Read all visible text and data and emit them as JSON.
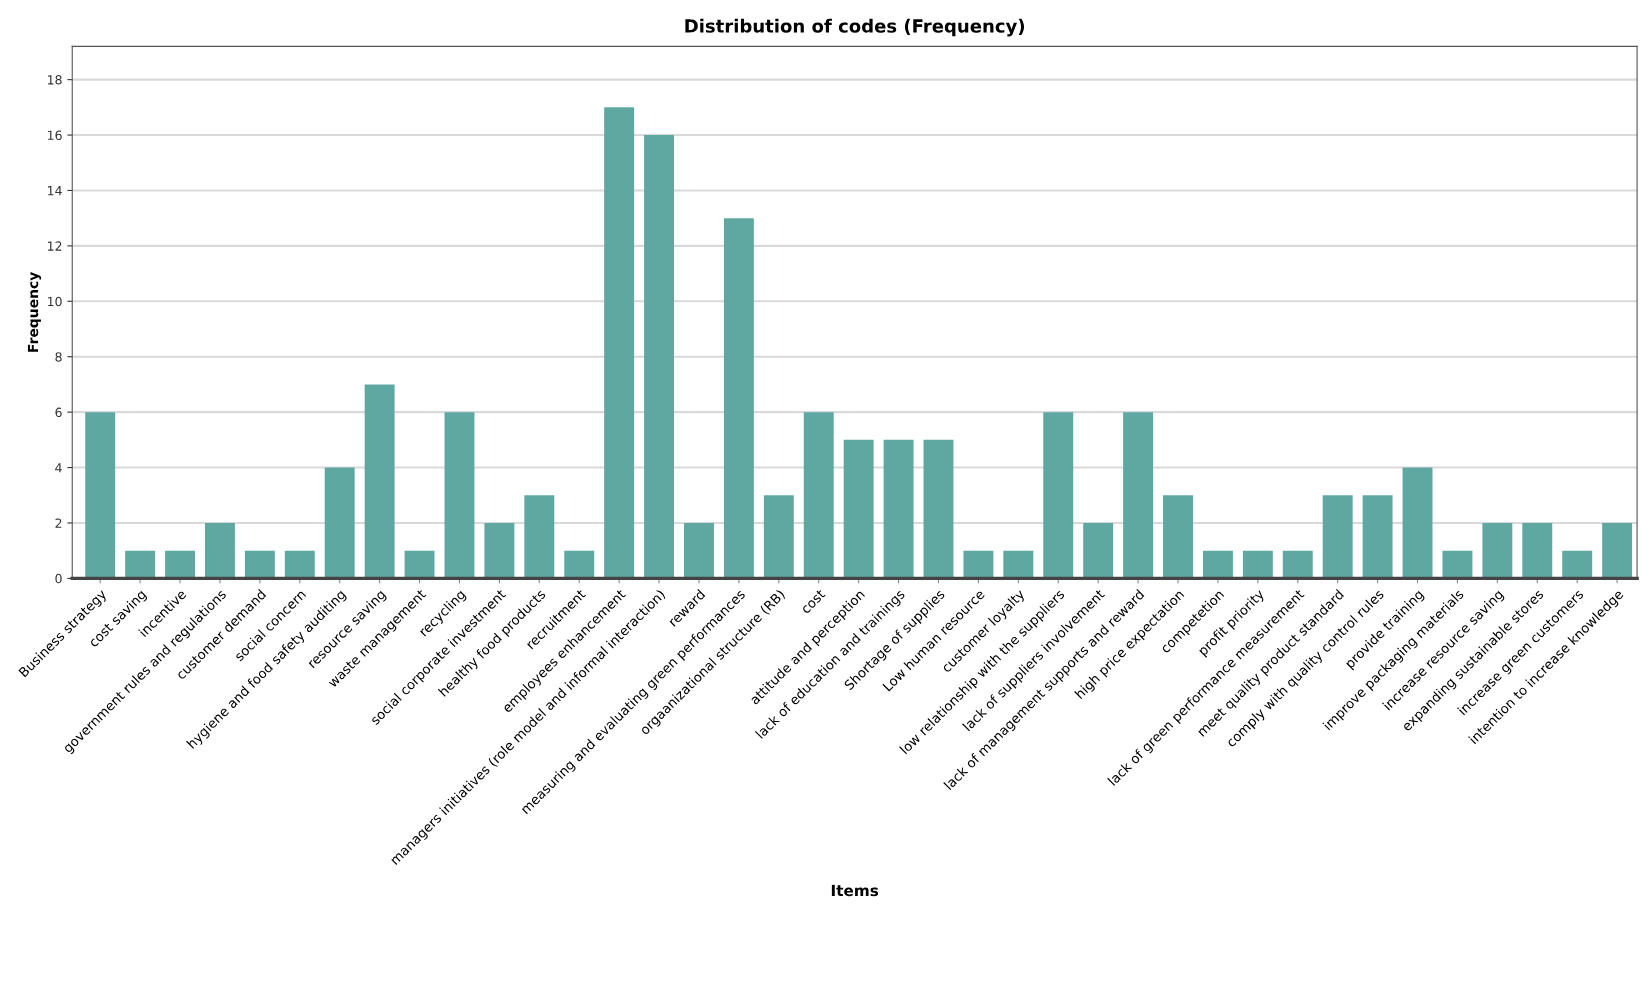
{
  "chart_data": {
    "type": "bar",
    "title": "Distribution of codes (Frequency)",
    "xlabel": "Items",
    "ylabel": "Frequency",
    "categories": [
      "Business strategy",
      "cost saving",
      "incentive",
      "government rules and regulations",
      "customer demand",
      "social concern",
      "hygiene and food safety auditing",
      "resource saving",
      "waste management",
      "recycling",
      "social corporate investment",
      "healthy food products",
      "recruitment",
      "employees enhancement",
      "managers initiatives (role model and informal interaction)",
      "reward",
      "measuring and evaluating green performances",
      "orgaanizational structure (RB)",
      "cost",
      "attitude and perception",
      "lack of education and trainings",
      "Shortage of supplies",
      "Low human resource",
      "customer loyalty",
      "low relationship with the suppliers",
      "lack of suppliers involvement",
      "lack of management supports and reward",
      "high price expectation",
      "competetion",
      "profit priority",
      "lack of green performance measurement",
      "meet quality product standard",
      "comply with quality control rules",
      "provide training",
      "improve packaging materials",
      "increase resource saving",
      "expanding sustainable stores",
      "increase green customers",
      "intention to increase knowledge"
    ],
    "values": [
      6,
      1,
      1,
      2,
      1,
      1,
      4,
      7,
      1,
      6,
      2,
      3,
      1,
      17,
      16,
      2,
      13,
      3,
      6,
      5,
      5,
      5,
      1,
      1,
      6,
      2,
      6,
      3,
      1,
      1,
      1,
      3,
      3,
      4,
      1,
      2,
      2,
      1,
      2
    ],
    "color": "#5fa8a2",
    "ylim": [
      0,
      19.2
    ],
    "yticks": [
      0,
      2,
      4,
      6,
      8,
      10,
      12,
      14,
      16,
      18
    ],
    "grid": "y",
    "legend": false
  }
}
